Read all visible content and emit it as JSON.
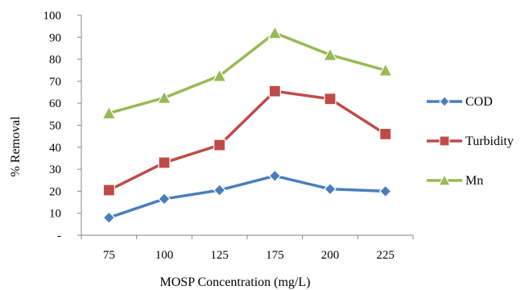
{
  "chart_data": {
    "type": "line",
    "title": "",
    "xlabel": "MOSP Concentration (mg/L)",
    "ylabel": "% Removal",
    "categories": [
      "75",
      "100",
      "125",
      "175",
      "200",
      "225"
    ],
    "y_ticks": [
      "-",
      "10",
      "20",
      "30",
      "40",
      "50",
      "60",
      "70",
      "80",
      "90",
      "100"
    ],
    "ylim": [
      0,
      100
    ],
    "grid": false,
    "legend_position": "right",
    "series": [
      {
        "name": "COD",
        "values": [
          8,
          16.5,
          20.5,
          27,
          21,
          20
        ],
        "color": "#4a7ebb",
        "marker": "diamond"
      },
      {
        "name": "Turbidity",
        "values": [
          20.5,
          33,
          41,
          65.5,
          62,
          46
        ],
        "color": "#be4b48",
        "marker": "square"
      },
      {
        "name": "Mn",
        "values": [
          55.5,
          62.5,
          72.5,
          92,
          82,
          75
        ],
        "color": "#98b954",
        "marker": "triangle"
      }
    ]
  }
}
